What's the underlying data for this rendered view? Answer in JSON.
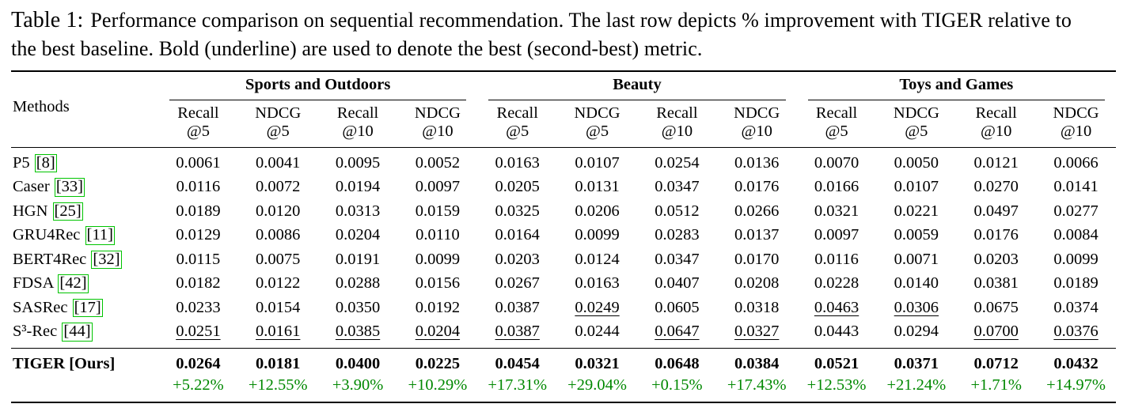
{
  "caption": {
    "label": "Table 1:",
    "text": "Performance comparison on sequential recommendation. The last row depicts % improvement with TIGER relative to the best baseline. Bold (underline) are used to denote the best (second-best) metric."
  },
  "colors": {
    "improvement_green": "#008800",
    "citation_box_green": "#00c400",
    "text": "#000000",
    "background": "#ffffff"
  },
  "table": {
    "methods_header": "Methods",
    "groups": [
      "Sports and Outdoors",
      "Beauty",
      "Toys and Games"
    ],
    "metrics": [
      [
        "Recall",
        "@5"
      ],
      [
        "NDCG",
        "@5"
      ],
      [
        "Recall",
        "@10"
      ],
      [
        "NDCG",
        "@10"
      ]
    ],
    "rows": [
      {
        "method": "P5",
        "cite": "[8]",
        "values": [
          "0.0061",
          "0.0041",
          "0.0095",
          "0.0052",
          "0.0163",
          "0.0107",
          "0.0254",
          "0.0136",
          "0.0070",
          "0.0050",
          "0.0121",
          "0.0066"
        ],
        "underline": []
      },
      {
        "method": "Caser",
        "cite": "[33]",
        "values": [
          "0.0116",
          "0.0072",
          "0.0194",
          "0.0097",
          "0.0205",
          "0.0131",
          "0.0347",
          "0.0176",
          "0.0166",
          "0.0107",
          "0.0270",
          "0.0141"
        ],
        "underline": []
      },
      {
        "method": "HGN",
        "cite": "[25]",
        "values": [
          "0.0189",
          "0.0120",
          "0.0313",
          "0.0159",
          "0.0325",
          "0.0206",
          "0.0512",
          "0.0266",
          "0.0321",
          "0.0221",
          "0.0497",
          "0.0277"
        ],
        "underline": []
      },
      {
        "method": "GRU4Rec",
        "cite": "[11]",
        "values": [
          "0.0129",
          "0.0086",
          "0.0204",
          "0.0110",
          "0.0164",
          "0.0099",
          "0.0283",
          "0.0137",
          "0.0097",
          "0.0059",
          "0.0176",
          "0.0084"
        ],
        "underline": []
      },
      {
        "method": "BERT4Rec",
        "cite": "[32]",
        "values": [
          "0.0115",
          "0.0075",
          "0.0191",
          "0.0099",
          "0.0203",
          "0.0124",
          "0.0347",
          "0.0170",
          "0.0116",
          "0.0071",
          "0.0203",
          "0.0099"
        ],
        "underline": []
      },
      {
        "method": "FDSA",
        "cite": "[42]",
        "values": [
          "0.0182",
          "0.0122",
          "0.0288",
          "0.0156",
          "0.0267",
          "0.0163",
          "0.0407",
          "0.0208",
          "0.0228",
          "0.0140",
          "0.0381",
          "0.0189"
        ],
        "underline": []
      },
      {
        "method": "SASRec",
        "cite": "[17]",
        "values": [
          "0.0233",
          "0.0154",
          "0.0350",
          "0.0192",
          "0.0387",
          "0.0249",
          "0.0605",
          "0.0318",
          "0.0463",
          "0.0306",
          "0.0675",
          "0.0374"
        ],
        "underline": [
          5,
          8,
          9
        ]
      },
      {
        "method": "S³-Rec",
        "cite": "[44]",
        "values": [
          "0.0251",
          "0.0161",
          "0.0385",
          "0.0204",
          "0.0387",
          "0.0244",
          "0.0647",
          "0.0327",
          "0.0443",
          "0.0294",
          "0.0700",
          "0.0376"
        ],
        "underline": [
          0,
          1,
          2,
          3,
          4,
          6,
          7,
          10,
          11
        ]
      }
    ],
    "tiger_row": {
      "method": "TIGER [Ours]",
      "values": [
        "0.0264",
        "0.0181",
        "0.0400",
        "0.0225",
        "0.0454",
        "0.0321",
        "0.0648",
        "0.0384",
        "0.0521",
        "0.0371",
        "0.0712",
        "0.0432"
      ]
    },
    "improvement_row": [
      "+5.22%",
      "+12.55%",
      "+3.90%",
      "+10.29%",
      "+17.31%",
      "+29.04%",
      "+0.15%",
      "+17.43%",
      "+12.53%",
      "+21.24%",
      "+1.71%",
      "+14.97%"
    ]
  }
}
